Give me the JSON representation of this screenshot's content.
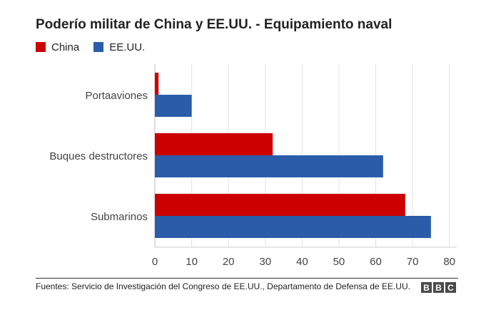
{
  "chart_data": {
    "type": "bar",
    "orientation": "horizontal",
    "title": "Poderío militar de China y EE.UU. - Equipamiento naval",
    "categories": [
      "Portaaviones",
      "Buques destructores",
      "Submarinos"
    ],
    "series": [
      {
        "name": "China",
        "color": "#cc0000",
        "values": [
          1,
          32,
          68
        ]
      },
      {
        "name": "EE.UU.",
        "color": "#2a5caa",
        "values": [
          10,
          62,
          75
        ]
      }
    ],
    "xlim": [
      0,
      82
    ],
    "xticks": [
      0,
      10,
      20,
      30,
      40,
      50,
      60,
      70,
      80
    ],
    "grid": true,
    "legend_position": "top-left"
  },
  "footer": {
    "source": "Fuentes: Servicio de Investigación del Congreso de EE.UU., Departamento de Defensa de EE.UU.",
    "logo": [
      "B",
      "B",
      "C"
    ]
  }
}
